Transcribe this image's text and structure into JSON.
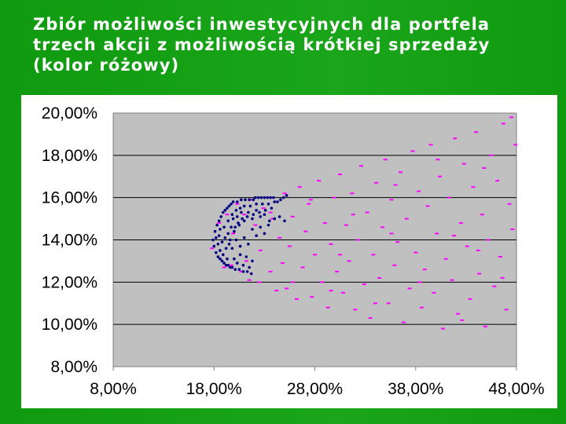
{
  "slide": {
    "title": "Zbiór możliwości inwestycyjnych dla portfela\ntrzech akcji z możliwością krótkiej sprzedaży\n(kolor różowy)"
  },
  "colors": {
    "background": "#119c11",
    "plot_area": "#c0c0c0",
    "short_selling_points": "#ff00ff",
    "no_short_selling_points": "#000080"
  },
  "chart_data": {
    "type": "scatter",
    "title": "",
    "xlabel": "",
    "ylabel": "",
    "xlim": [
      0.08,
      0.48
    ],
    "ylim": [
      0.08,
      0.2
    ],
    "x_ticks": [
      "8,00%",
      "18,00%",
      "28,00%",
      "38,00%",
      "48,00%"
    ],
    "y_ticks": [
      "20,00%",
      "18,00%",
      "16,00%",
      "14,00%",
      "12,00%",
      "10,00%",
      "8,00%"
    ],
    "grid": "horizontal",
    "legend": "none",
    "series": [
      {
        "color": "#ff00ff",
        "marker": "dash",
        "points": [
          [
            0.178,
            0.136
          ],
          [
            0.185,
            0.148
          ],
          [
            0.19,
            0.127
          ],
          [
            0.193,
            0.152
          ],
          [
            0.197,
            0.128
          ],
          [
            0.199,
            0.143
          ],
          [
            0.203,
            0.157
          ],
          [
            0.207,
            0.125
          ],
          [
            0.21,
            0.152
          ],
          [
            0.212,
            0.13
          ],
          [
            0.215,
            0.121
          ],
          [
            0.218,
            0.159
          ],
          [
            0.221,
            0.147
          ],
          [
            0.225,
            0.12
          ],
          [
            0.226,
            0.135
          ],
          [
            0.229,
            0.155
          ],
          [
            0.232,
            0.16
          ],
          [
            0.236,
            0.125
          ],
          [
            0.238,
            0.15
          ],
          [
            0.242,
            0.116
          ],
          [
            0.245,
            0.141
          ],
          [
            0.248,
            0.129
          ],
          [
            0.25,
            0.162
          ],
          [
            0.252,
            0.117
          ],
          [
            0.255,
            0.137
          ],
          [
            0.258,
            0.151
          ],
          [
            0.262,
            0.112
          ],
          [
            0.265,
            0.165
          ],
          [
            0.268,
            0.127
          ],
          [
            0.271,
            0.144
          ],
          [
            0.274,
            0.157
          ],
          [
            0.277,
            0.113
          ],
          [
            0.28,
            0.133
          ],
          [
            0.284,
            0.168
          ],
          [
            0.287,
            0.12
          ],
          [
            0.29,
            0.148
          ],
          [
            0.293,
            0.108
          ],
          [
            0.296,
            0.138
          ],
          [
            0.299,
            0.16
          ],
          [
            0.302,
            0.125
          ],
          [
            0.305,
            0.171
          ],
          [
            0.308,
            0.115
          ],
          [
            0.311,
            0.147
          ],
          [
            0.314,
            0.13
          ],
          [
            0.317,
            0.162
          ],
          [
            0.32,
            0.107
          ],
          [
            0.323,
            0.14
          ],
          [
            0.326,
            0.175
          ],
          [
            0.329,
            0.119
          ],
          [
            0.332,
            0.153
          ],
          [
            0.335,
            0.103
          ],
          [
            0.338,
            0.133
          ],
          [
            0.341,
            0.167
          ],
          [
            0.344,
            0.122
          ],
          [
            0.347,
            0.146
          ],
          [
            0.35,
            0.178
          ],
          [
            0.353,
            0.11
          ],
          [
            0.356,
            0.159
          ],
          [
            0.359,
            0.128
          ],
          [
            0.362,
            0.139
          ],
          [
            0.365,
            0.172
          ],
          [
            0.368,
            0.101
          ],
          [
            0.371,
            0.15
          ],
          [
            0.374,
            0.117
          ],
          [
            0.377,
            0.182
          ],
          [
            0.38,
            0.134
          ],
          [
            0.383,
            0.163
          ],
          [
            0.386,
            0.108
          ],
          [
            0.389,
            0.126
          ],
          [
            0.392,
            0.156
          ],
          [
            0.395,
            0.185
          ],
          [
            0.398,
            0.115
          ],
          [
            0.401,
            0.143
          ],
          [
            0.404,
            0.17
          ],
          [
            0.407,
            0.098
          ],
          [
            0.41,
            0.131
          ],
          [
            0.413,
            0.16
          ],
          [
            0.416,
            0.121
          ],
          [
            0.419,
            0.188
          ],
          [
            0.422,
            0.105
          ],
          [
            0.425,
            0.148
          ],
          [
            0.428,
            0.176
          ],
          [
            0.431,
            0.137
          ],
          [
            0.434,
            0.112
          ],
          [
            0.437,
            0.165
          ],
          [
            0.44,
            0.191
          ],
          [
            0.443,
            0.124
          ],
          [
            0.446,
            0.152
          ],
          [
            0.449,
            0.099
          ],
          [
            0.452,
            0.14
          ],
          [
            0.455,
            0.18
          ],
          [
            0.458,
            0.118
          ],
          [
            0.461,
            0.168
          ],
          [
            0.464,
            0.132
          ],
          [
            0.467,
            0.195
          ],
          [
            0.47,
            0.107
          ],
          [
            0.473,
            0.157
          ],
          [
            0.476,
            0.145
          ],
          [
            0.479,
            0.185
          ],
          [
            0.258,
            0.12
          ],
          [
            0.276,
            0.159
          ],
          [
            0.296,
            0.116
          ],
          [
            0.318,
            0.152
          ],
          [
            0.34,
            0.11
          ],
          [
            0.36,
            0.166
          ],
          [
            0.384,
            0.12
          ],
          [
            0.402,
            0.178
          ],
          [
            0.426,
            0.102
          ],
          [
            0.448,
            0.174
          ],
          [
            0.466,
            0.122
          ],
          [
            0.475,
            0.198
          ],
          [
            0.236,
            0.153
          ],
          [
            0.305,
            0.133
          ],
          [
            0.356,
            0.143
          ],
          [
            0.418,
            0.142
          ],
          [
            0.442,
            0.135
          ]
        ]
      },
      {
        "color": "#000080",
        "marker": "dot",
        "points": [
          [
            0.179,
            0.14
          ],
          [
            0.18,
            0.137
          ],
          [
            0.181,
            0.144
          ],
          [
            0.182,
            0.134
          ],
          [
            0.183,
            0.147
          ],
          [
            0.184,
            0.132
          ],
          [
            0.185,
            0.149
          ],
          [
            0.186,
            0.131
          ],
          [
            0.187,
            0.151
          ],
          [
            0.188,
            0.13
          ],
          [
            0.189,
            0.153
          ],
          [
            0.19,
            0.129
          ],
          [
            0.191,
            0.154
          ],
          [
            0.192,
            0.128
          ],
          [
            0.193,
            0.155
          ],
          [
            0.194,
            0.128
          ],
          [
            0.195,
            0.156
          ],
          [
            0.196,
            0.127
          ],
          [
            0.197,
            0.157
          ],
          [
            0.198,
            0.127
          ],
          [
            0.199,
            0.158
          ],
          [
            0.201,
            0.126
          ],
          [
            0.203,
            0.158
          ],
          [
            0.205,
            0.126
          ],
          [
            0.207,
            0.159
          ],
          [
            0.209,
            0.125
          ],
          [
            0.211,
            0.159
          ],
          [
            0.213,
            0.125
          ],
          [
            0.215,
            0.159
          ],
          [
            0.217,
            0.124
          ],
          [
            0.219,
            0.159
          ],
          [
            0.221,
            0.16
          ],
          [
            0.224,
            0.16
          ],
          [
            0.227,
            0.16
          ],
          [
            0.23,
            0.16
          ],
          [
            0.233,
            0.16
          ],
          [
            0.236,
            0.16
          ],
          [
            0.239,
            0.16
          ],
          [
            0.185,
            0.142
          ],
          [
            0.188,
            0.139
          ],
          [
            0.19,
            0.146
          ],
          [
            0.192,
            0.136
          ],
          [
            0.194,
            0.149
          ],
          [
            0.196,
            0.14
          ],
          [
            0.198,
            0.152
          ],
          [
            0.2,
            0.144
          ],
          [
            0.202,
            0.154
          ],
          [
            0.204,
            0.148
          ],
          [
            0.206,
            0.155
          ],
          [
            0.208,
            0.15
          ],
          [
            0.21,
            0.156
          ],
          [
            0.213,
            0.151
          ],
          [
            0.216,
            0.156
          ],
          [
            0.219,
            0.152
          ],
          [
            0.222,
            0.157
          ],
          [
            0.225,
            0.153
          ],
          [
            0.228,
            0.157
          ],
          [
            0.231,
            0.154
          ],
          [
            0.234,
            0.157
          ],
          [
            0.237,
            0.155
          ],
          [
            0.24,
            0.158
          ],
          [
            0.243,
            0.158
          ],
          [
            0.246,
            0.159
          ],
          [
            0.249,
            0.16
          ],
          [
            0.252,
            0.161
          ],
          [
            0.186,
            0.135
          ],
          [
            0.189,
            0.133
          ],
          [
            0.191,
            0.141
          ],
          [
            0.193,
            0.131
          ],
          [
            0.195,
            0.138
          ],
          [
            0.197,
            0.146
          ],
          [
            0.199,
            0.15
          ],
          [
            0.201,
            0.146
          ],
          [
            0.203,
            0.151
          ],
          [
            0.205,
            0.147
          ],
          [
            0.207,
            0.153
          ],
          [
            0.21,
            0.149
          ],
          [
            0.214,
            0.153
          ],
          [
            0.218,
            0.15
          ],
          [
            0.222,
            0.154
          ],
          [
            0.226,
            0.151
          ],
          [
            0.23,
            0.152
          ],
          [
            0.235,
            0.149
          ],
          [
            0.24,
            0.15
          ],
          [
            0.245,
            0.151
          ],
          [
            0.25,
            0.149
          ],
          [
            0.2,
            0.131
          ],
          [
            0.203,
            0.129
          ],
          [
            0.206,
            0.133
          ],
          [
            0.209,
            0.128
          ],
          [
            0.212,
            0.132
          ],
          [
            0.215,
            0.127
          ],
          [
            0.218,
            0.13
          ],
          [
            0.182,
            0.141
          ],
          [
            0.184,
            0.138
          ],
          [
            0.186,
            0.145
          ],
          [
            0.194,
            0.143
          ],
          [
            0.198,
            0.136
          ],
          [
            0.202,
            0.14
          ],
          [
            0.206,
            0.137
          ],
          [
            0.21,
            0.141
          ],
          [
            0.214,
            0.138
          ],
          [
            0.218,
            0.145
          ],
          [
            0.222,
            0.142
          ],
          [
            0.226,
            0.146
          ],
          [
            0.23,
            0.143
          ],
          [
            0.234,
            0.147
          ]
        ]
      }
    ]
  }
}
